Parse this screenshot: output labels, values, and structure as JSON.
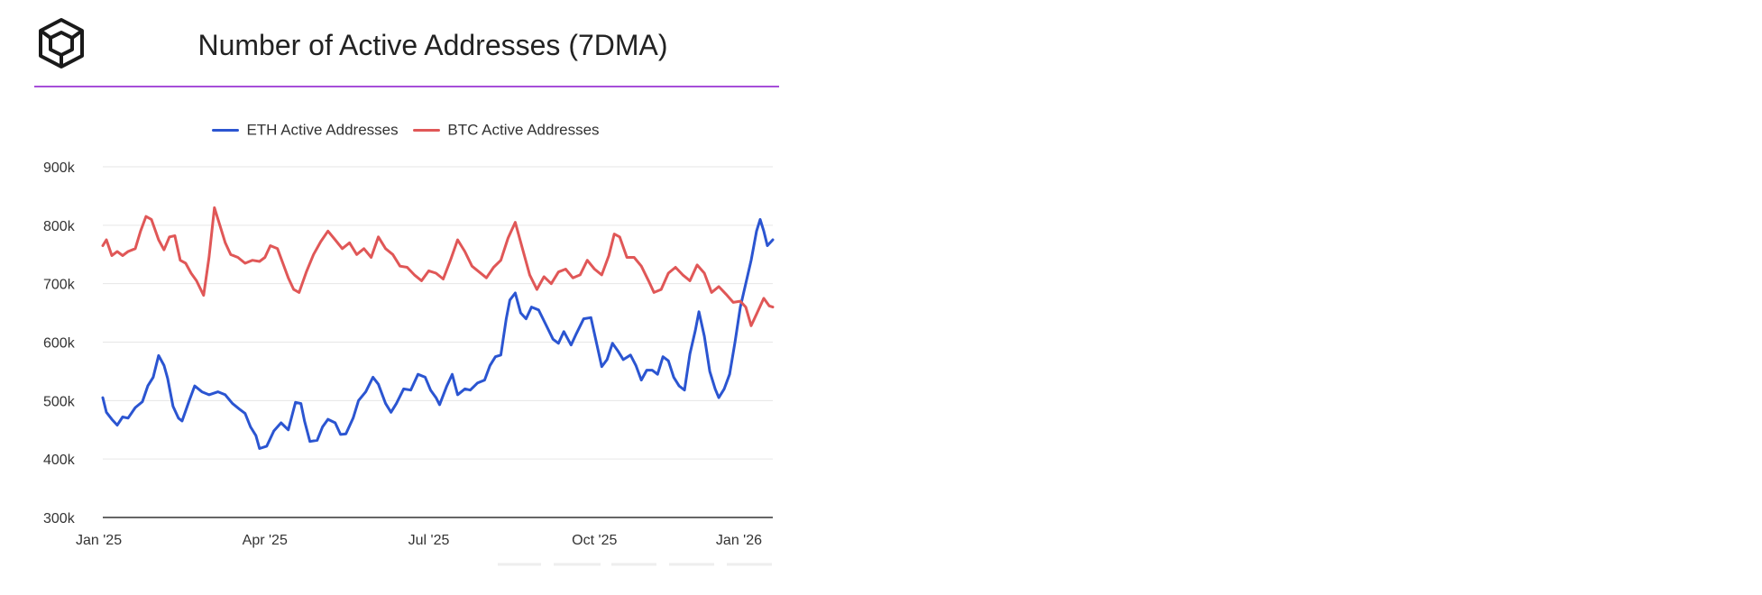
{
  "page": {
    "title": "Number of Active Addresses (7DMA)"
  },
  "colors": {
    "accent_rule": "#a64ed9",
    "eth": "#2b55d1",
    "btc": "#e05757",
    "grid": "#e6e6e6"
  },
  "logo": {
    "icon": "cube-logo-icon"
  },
  "chart_data": {
    "type": "line",
    "title": "Number of Active Addresses (7DMA)",
    "legend_position": "top-center",
    "grid": true,
    "xlabel": "",
    "ylabel": "",
    "xlim": [
      "2025-01-01",
      "2026-01-08"
    ],
    "ylim": [
      300000,
      900000
    ],
    "x_ticks": [
      {
        "date": "2025-01-01",
        "label": "Jan '25"
      },
      {
        "date": "2025-04-01",
        "label": "Apr '25"
      },
      {
        "date": "2025-07-01",
        "label": "Jul '25"
      },
      {
        "date": "2025-10-01",
        "label": "Oct '25"
      },
      {
        "date": "2026-01-01",
        "label": "Jan '26"
      }
    ],
    "y_ticks": [
      {
        "value": 300000,
        "label": "300k"
      },
      {
        "value": 400000,
        "label": "400k"
      },
      {
        "value": 500000,
        "label": "500k"
      },
      {
        "value": 600000,
        "label": "600k"
      },
      {
        "value": 700000,
        "label": "700k"
      },
      {
        "value": 800000,
        "label": "800k"
      },
      {
        "value": 900000,
        "label": "900k"
      }
    ],
    "series": [
      {
        "name": "ETH Active Addresses",
        "color": "#2b55d1",
        "points": [
          [
            "2025-01-01",
            505000
          ],
          [
            "2025-01-03",
            480000
          ],
          [
            "2025-01-06",
            468000
          ],
          [
            "2025-01-09",
            458000
          ],
          [
            "2025-01-12",
            472000
          ],
          [
            "2025-01-15",
            470000
          ],
          [
            "2025-01-19",
            488000
          ],
          [
            "2025-01-23",
            498000
          ],
          [
            "2025-01-26",
            525000
          ],
          [
            "2025-01-29",
            540000
          ],
          [
            "2025-02-01",
            577000
          ],
          [
            "2025-02-04",
            560000
          ],
          [
            "2025-02-06",
            538000
          ],
          [
            "2025-02-09",
            490000
          ],
          [
            "2025-02-12",
            470000
          ],
          [
            "2025-02-14",
            465000
          ],
          [
            "2025-02-18",
            500000
          ],
          [
            "2025-02-21",
            525000
          ],
          [
            "2025-02-25",
            515000
          ],
          [
            "2025-03-01",
            510000
          ],
          [
            "2025-03-06",
            515000
          ],
          [
            "2025-03-10",
            510000
          ],
          [
            "2025-03-14",
            495000
          ],
          [
            "2025-03-18",
            485000
          ],
          [
            "2025-03-21",
            478000
          ],
          [
            "2025-03-24",
            455000
          ],
          [
            "2025-03-27",
            440000
          ],
          [
            "2025-03-29",
            418000
          ],
          [
            "2025-04-02",
            422000
          ],
          [
            "2025-04-06",
            448000
          ],
          [
            "2025-04-10",
            462000
          ],
          [
            "2025-04-14",
            450000
          ],
          [
            "2025-04-18",
            497000
          ],
          [
            "2025-04-21",
            495000
          ],
          [
            "2025-04-23",
            465000
          ],
          [
            "2025-04-26",
            430000
          ],
          [
            "2025-04-30",
            432000
          ],
          [
            "2025-05-03",
            455000
          ],
          [
            "2025-05-06",
            468000
          ],
          [
            "2025-05-10",
            462000
          ],
          [
            "2025-05-13",
            442000
          ],
          [
            "2025-05-16",
            443000
          ],
          [
            "2025-05-20",
            470000
          ],
          [
            "2025-05-23",
            500000
          ],
          [
            "2025-05-27",
            515000
          ],
          [
            "2025-05-31",
            540000
          ],
          [
            "2025-06-03",
            528000
          ],
          [
            "2025-06-07",
            495000
          ],
          [
            "2025-06-10",
            480000
          ],
          [
            "2025-06-13",
            495000
          ],
          [
            "2025-06-17",
            520000
          ],
          [
            "2025-06-21",
            518000
          ],
          [
            "2025-06-25",
            545000
          ],
          [
            "2025-06-29",
            540000
          ],
          [
            "2025-07-02",
            518000
          ],
          [
            "2025-07-05",
            505000
          ],
          [
            "2025-07-07",
            493000
          ],
          [
            "2025-07-11",
            525000
          ],
          [
            "2025-07-14",
            545000
          ],
          [
            "2025-07-17",
            510000
          ],
          [
            "2025-07-21",
            520000
          ],
          [
            "2025-07-24",
            518000
          ],
          [
            "2025-07-28",
            530000
          ],
          [
            "2025-08-01",
            535000
          ],
          [
            "2025-08-04",
            560000
          ],
          [
            "2025-08-07",
            575000
          ],
          [
            "2025-08-10",
            578000
          ],
          [
            "2025-08-13",
            640000
          ],
          [
            "2025-08-15",
            672000
          ],
          [
            "2025-08-18",
            684000
          ],
          [
            "2025-08-21",
            650000
          ],
          [
            "2025-08-24",
            640000
          ],
          [
            "2025-08-27",
            660000
          ],
          [
            "2025-08-31",
            655000
          ],
          [
            "2025-09-04",
            630000
          ],
          [
            "2025-09-08",
            605000
          ],
          [
            "2025-09-11",
            598000
          ],
          [
            "2025-09-14",
            618000
          ],
          [
            "2025-09-18",
            595000
          ],
          [
            "2025-09-21",
            615000
          ],
          [
            "2025-09-25",
            640000
          ],
          [
            "2025-09-29",
            642000
          ],
          [
            "2025-10-02",
            600000
          ],
          [
            "2025-10-05",
            558000
          ],
          [
            "2025-10-08",
            570000
          ],
          [
            "2025-10-11",
            598000
          ],
          [
            "2025-10-14",
            585000
          ],
          [
            "2025-10-17",
            570000
          ],
          [
            "2025-10-21",
            578000
          ],
          [
            "2025-10-24",
            560000
          ],
          [
            "2025-10-27",
            535000
          ],
          [
            "2025-10-30",
            552000
          ],
          [
            "2025-11-02",
            552000
          ],
          [
            "2025-11-05",
            545000
          ],
          [
            "2025-11-08",
            575000
          ],
          [
            "2025-11-11",
            568000
          ],
          [
            "2025-11-14",
            540000
          ],
          [
            "2025-11-17",
            525000
          ],
          [
            "2025-11-20",
            518000
          ],
          [
            "2025-11-23",
            580000
          ],
          [
            "2025-11-26",
            620000
          ],
          [
            "2025-11-28",
            652000
          ],
          [
            "2025-12-01",
            610000
          ],
          [
            "2025-12-04",
            550000
          ],
          [
            "2025-12-07",
            520000
          ],
          [
            "2025-12-09",
            505000
          ],
          [
            "2025-12-12",
            520000
          ],
          [
            "2025-12-15",
            545000
          ],
          [
            "2025-12-18",
            600000
          ],
          [
            "2025-12-21",
            660000
          ],
          [
            "2025-12-24",
            700000
          ],
          [
            "2025-12-27",
            740000
          ],
          [
            "2025-12-30",
            790000
          ],
          [
            "2026-01-01",
            810000
          ],
          [
            "2026-01-03",
            790000
          ],
          [
            "2026-01-05",
            765000
          ],
          [
            "2026-01-08",
            775000
          ]
        ]
      },
      {
        "name": "BTC Active Addresses",
        "color": "#e05757",
        "points": [
          [
            "2025-01-01",
            765000
          ],
          [
            "2025-01-03",
            775000
          ],
          [
            "2025-01-06",
            748000
          ],
          [
            "2025-01-09",
            755000
          ],
          [
            "2025-01-12",
            748000
          ],
          [
            "2025-01-15",
            755000
          ],
          [
            "2025-01-19",
            760000
          ],
          [
            "2025-01-22",
            790000
          ],
          [
            "2025-01-25",
            815000
          ],
          [
            "2025-01-28",
            810000
          ],
          [
            "2025-02-01",
            775000
          ],
          [
            "2025-02-04",
            758000
          ],
          [
            "2025-02-07",
            780000
          ],
          [
            "2025-02-10",
            782000
          ],
          [
            "2025-02-13",
            740000
          ],
          [
            "2025-02-16",
            735000
          ],
          [
            "2025-02-19",
            718000
          ],
          [
            "2025-02-22",
            705000
          ],
          [
            "2025-02-26",
            680000
          ],
          [
            "2025-03-01",
            745000
          ],
          [
            "2025-03-04",
            830000
          ],
          [
            "2025-03-07",
            800000
          ],
          [
            "2025-03-10",
            770000
          ],
          [
            "2025-03-13",
            750000
          ],
          [
            "2025-03-17",
            745000
          ],
          [
            "2025-03-21",
            735000
          ],
          [
            "2025-03-25",
            740000
          ],
          [
            "2025-03-29",
            738000
          ],
          [
            "2025-04-01",
            745000
          ],
          [
            "2025-04-04",
            765000
          ],
          [
            "2025-04-08",
            760000
          ],
          [
            "2025-04-11",
            735000
          ],
          [
            "2025-04-14",
            710000
          ],
          [
            "2025-04-17",
            690000
          ],
          [
            "2025-04-20",
            685000
          ],
          [
            "2025-04-24",
            720000
          ],
          [
            "2025-04-28",
            750000
          ],
          [
            "2025-05-02",
            772000
          ],
          [
            "2025-05-06",
            790000
          ],
          [
            "2025-05-10",
            775000
          ],
          [
            "2025-05-14",
            760000
          ],
          [
            "2025-05-18",
            770000
          ],
          [
            "2025-05-22",
            750000
          ],
          [
            "2025-05-26",
            760000
          ],
          [
            "2025-05-30",
            745000
          ],
          [
            "2025-06-03",
            780000
          ],
          [
            "2025-06-07",
            760000
          ],
          [
            "2025-06-11",
            750000
          ],
          [
            "2025-06-15",
            730000
          ],
          [
            "2025-06-19",
            728000
          ],
          [
            "2025-06-23",
            715000
          ],
          [
            "2025-06-27",
            705000
          ],
          [
            "2025-07-01",
            722000
          ],
          [
            "2025-07-05",
            718000
          ],
          [
            "2025-07-09",
            708000
          ],
          [
            "2025-07-13",
            740000
          ],
          [
            "2025-07-17",
            775000
          ],
          [
            "2025-07-21",
            755000
          ],
          [
            "2025-07-25",
            730000
          ],
          [
            "2025-07-29",
            720000
          ],
          [
            "2025-08-02",
            710000
          ],
          [
            "2025-08-06",
            728000
          ],
          [
            "2025-08-10",
            740000
          ],
          [
            "2025-08-14",
            778000
          ],
          [
            "2025-08-18",
            805000
          ],
          [
            "2025-08-22",
            760000
          ],
          [
            "2025-08-26",
            715000
          ],
          [
            "2025-08-30",
            690000
          ],
          [
            "2025-09-03",
            712000
          ],
          [
            "2025-09-07",
            700000
          ],
          [
            "2025-09-11",
            720000
          ],
          [
            "2025-09-15",
            725000
          ],
          [
            "2025-09-19",
            710000
          ],
          [
            "2025-09-23",
            715000
          ],
          [
            "2025-09-27",
            740000
          ],
          [
            "2025-10-01",
            725000
          ],
          [
            "2025-10-05",
            715000
          ],
          [
            "2025-10-09",
            748000
          ],
          [
            "2025-10-12",
            785000
          ],
          [
            "2025-10-15",
            780000
          ],
          [
            "2025-10-19",
            745000
          ],
          [
            "2025-10-23",
            745000
          ],
          [
            "2025-10-27",
            730000
          ],
          [
            "2025-10-31",
            705000
          ],
          [
            "2025-11-03",
            685000
          ],
          [
            "2025-11-07",
            690000
          ],
          [
            "2025-11-11",
            718000
          ],
          [
            "2025-11-15",
            728000
          ],
          [
            "2025-11-19",
            715000
          ],
          [
            "2025-11-23",
            705000
          ],
          [
            "2025-11-27",
            732000
          ],
          [
            "2025-12-01",
            718000
          ],
          [
            "2025-12-05",
            685000
          ],
          [
            "2025-12-09",
            695000
          ],
          [
            "2025-12-13",
            682000
          ],
          [
            "2025-12-17",
            668000
          ],
          [
            "2025-12-21",
            670000
          ],
          [
            "2025-12-24",
            660000
          ],
          [
            "2025-12-27",
            628000
          ],
          [
            "2025-12-30",
            648000
          ],
          [
            "2026-01-03",
            675000
          ],
          [
            "2026-01-06",
            662000
          ],
          [
            "2026-01-08",
            660000
          ]
        ]
      }
    ]
  }
}
